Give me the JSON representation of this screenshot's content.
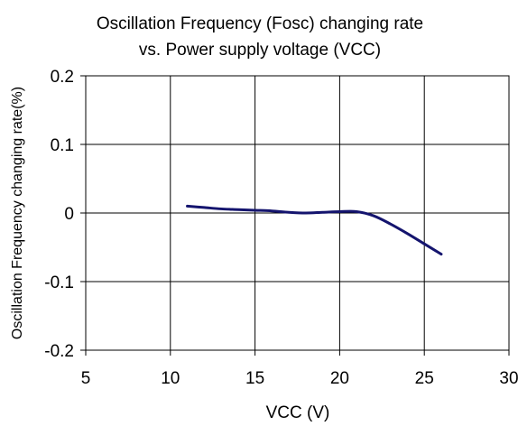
{
  "chart_data": {
    "type": "line",
    "title_lines": [
      "Oscillation Frequency (Fosc) changing rate",
      "vs. Power supply voltage (VCC)"
    ],
    "xlabel": "VCC (V)",
    "ylabel": "Oscillation Frequency changing rate(%)",
    "xlim": [
      5,
      30
    ],
    "ylim": [
      -0.2,
      0.2
    ],
    "x_ticks": [
      5,
      10,
      15,
      20,
      25,
      30
    ],
    "x_tick_labels": [
      "5",
      "10",
      "15",
      "20",
      "25",
      "30"
    ],
    "y_ticks": [
      0.2,
      0.1,
      0,
      -0.1,
      -0.2
    ],
    "y_tick_labels": [
      "0.2",
      "0.1",
      "0",
      "-0.1",
      "-0.2"
    ],
    "grid": true,
    "colors": {
      "line": "#14146e",
      "grid": "#000000"
    },
    "series": [
      {
        "x": [
          11,
          12,
          13,
          14,
          15,
          16,
          17,
          18,
          19,
          20,
          21,
          22,
          23,
          24,
          25,
          26
        ],
        "y": [
          0.01,
          0.008,
          0.006,
          0.005,
          0.004,
          0.003,
          0.001,
          0.0,
          0.001,
          0.002,
          0.002,
          -0.004,
          -0.016,
          -0.03,
          -0.045,
          -0.06
        ]
      }
    ]
  }
}
